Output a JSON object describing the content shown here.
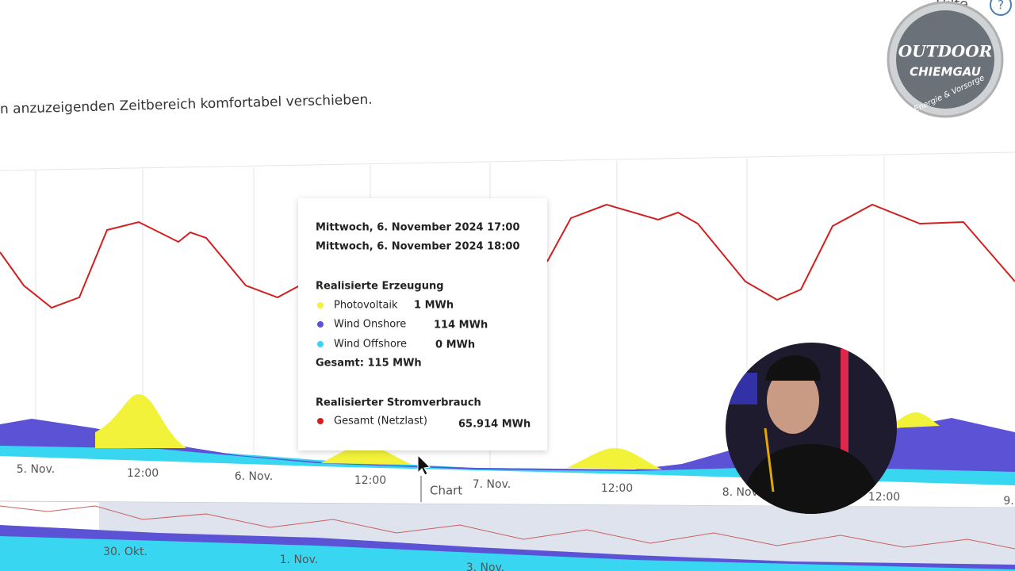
{
  "header": {
    "help": "Hilfe",
    "help_icon": "?",
    "description": "n anzuzeigenden Zeitbereich komfortabel verschieben."
  },
  "chart": {
    "x_labels": [
      "5. Nov.",
      "12:00",
      "6. Nov.",
      "12:00",
      "7. Nov.",
      "12:00",
      "8. Nov.",
      "12:00",
      "9."
    ],
    "cursor_label": "Chart",
    "tooltip": {
      "from": "Mittwoch, 6. November 2024 17:00",
      "to": "Mittwoch, 6. November 2024 18:00",
      "generation_title": "Realisierte Erzeugung",
      "items": [
        {
          "name": "Photovoltaik",
          "value": "1 MWh"
        },
        {
          "name": "Wind Onshore",
          "value": "114 MWh"
        },
        {
          "name": "Wind Offshore",
          "value": "0 MWh"
        }
      ],
      "total": "Gesamt: 115 MWh",
      "consumption_title": "Realisierter Stromverbrauch",
      "consumption_name": "Gesamt (Netzlast)",
      "consumption_value": "65.914 MWh"
    }
  },
  "navigator": {
    "labels": [
      "30. Okt.",
      "1. Nov.",
      "3. Nov."
    ]
  },
  "logo": {
    "line1": "OUTDOOR",
    "line2": "CHIEMGAU",
    "line3": "Energie & Vorsorge"
  }
}
